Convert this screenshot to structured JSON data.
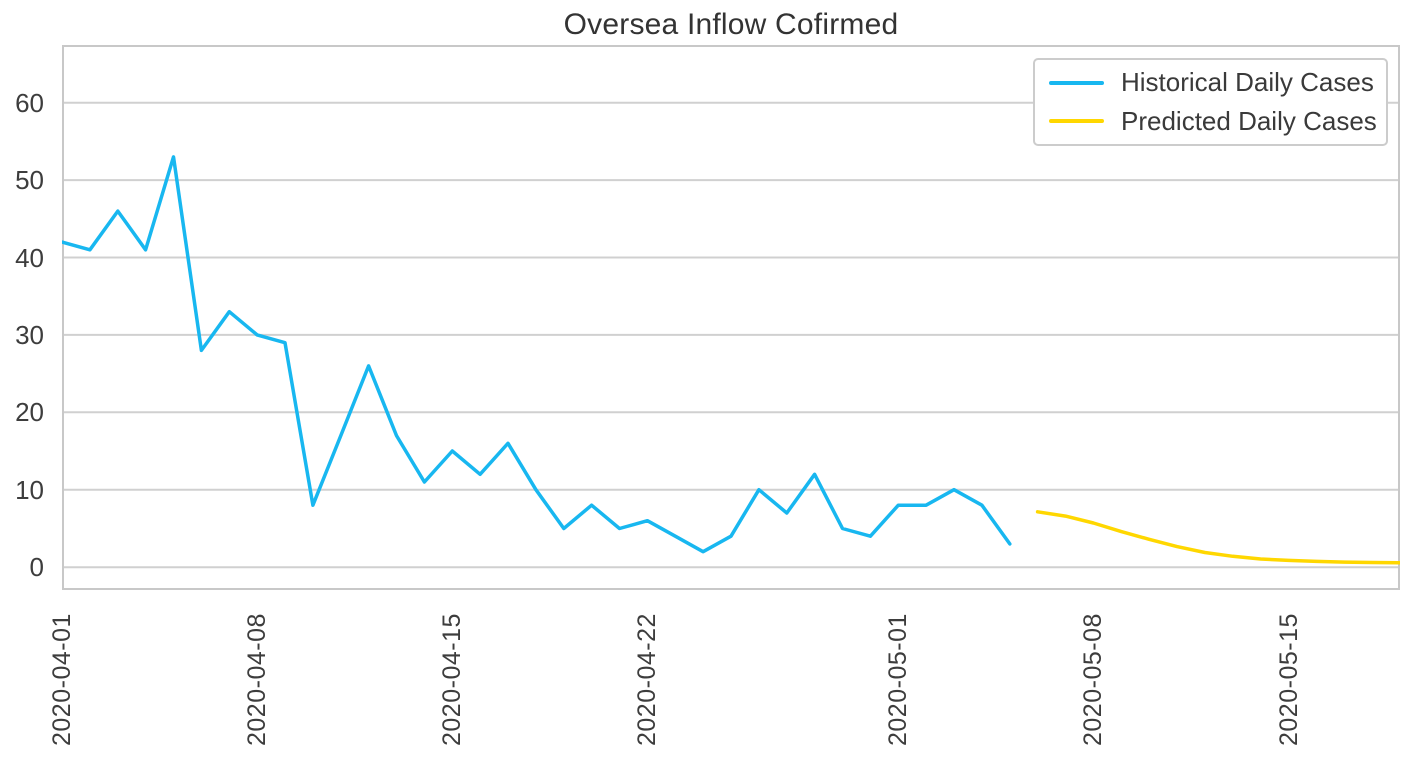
{
  "chart_data": {
    "type": "line",
    "title": "Oversea Inflow Cofirmed",
    "x_range": [
      "2020-04-01",
      "2020-05-19"
    ],
    "ylim": [
      -2.95,
      67.45
    ],
    "y_ticks": [
      0,
      10,
      20,
      30,
      40,
      50,
      60
    ],
    "x_tick_labels": [
      "2020-04-01",
      "2020-04-08",
      "2020-04-15",
      "2020-04-22",
      "2020-05-01",
      "2020-05-08",
      "2020-05-15"
    ],
    "grid": "horizontal-only",
    "grid_color": "#d0d0d0",
    "spine_color": "#c8c8c8",
    "tick_label_color": "#3d3d3d",
    "title_color": "#333333",
    "legend_position": "upper-right",
    "series": [
      {
        "name": "Historical Daily Cases",
        "color": "#18b7f0",
        "start_date": "2020-04-01",
        "values": [
          42,
          41,
          46,
          41,
          53,
          28,
          33,
          30,
          29,
          8,
          17,
          26,
          17,
          11,
          15,
          12,
          16,
          10,
          5,
          8,
          5,
          6,
          4,
          2,
          4,
          10,
          7,
          12,
          5,
          4,
          8,
          8,
          10,
          8,
          3
        ]
      },
      {
        "name": "Predicted Daily Cases",
        "color": "#ffd700",
        "start_date": "2020-05-06",
        "values": [
          7.15,
          6.6,
          5.7,
          4.6,
          3.6,
          2.65,
          1.9,
          1.4,
          1.05,
          0.87,
          0.75,
          0.66,
          0.6,
          0.57
        ]
      }
    ]
  }
}
